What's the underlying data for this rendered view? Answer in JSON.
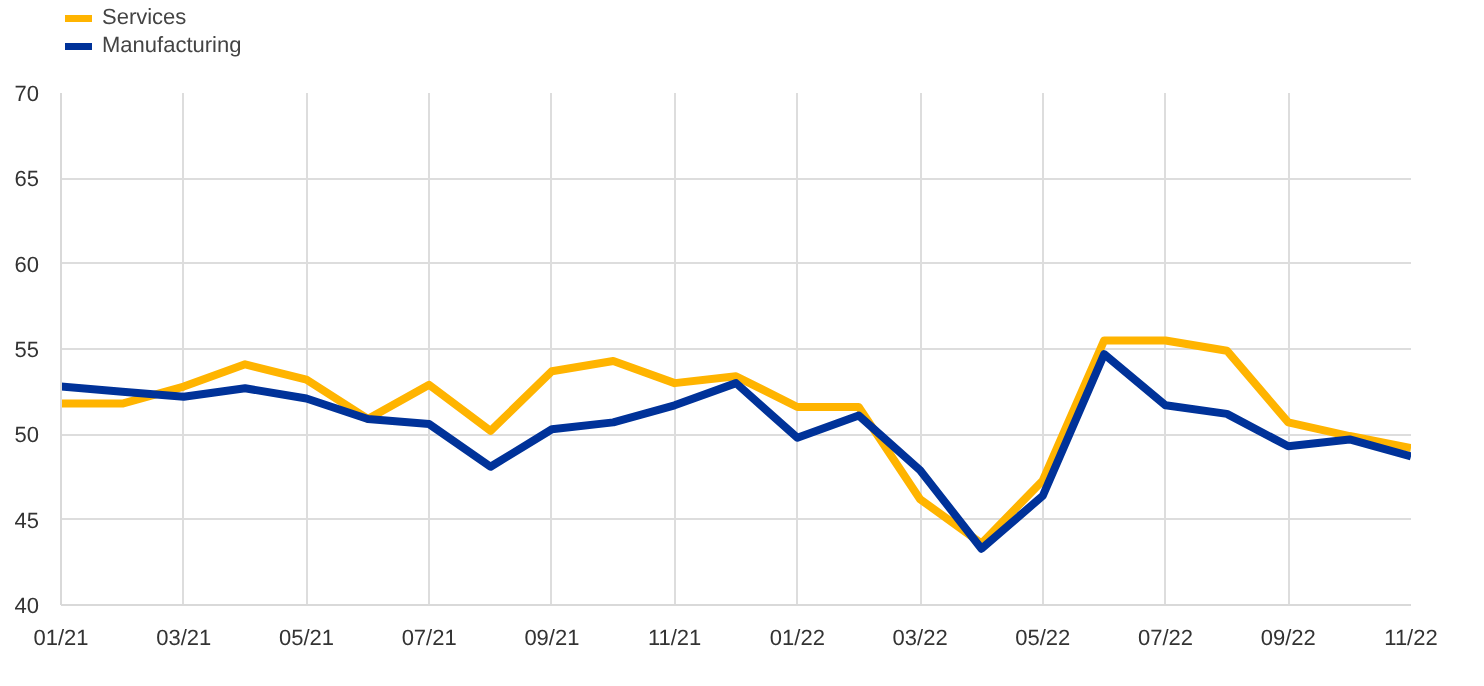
{
  "chart_data": {
    "type": "line",
    "categories": [
      "01/21",
      null,
      "03/21",
      null,
      "05/21",
      null,
      "07/21",
      null,
      "09/21",
      null,
      "11/21",
      null,
      "01/22",
      null,
      "03/22",
      null,
      "05/22",
      null,
      "07/22",
      null,
      "09/22",
      null,
      "11/22"
    ],
    "series": [
      {
        "name": "Services",
        "color": "#ffb400",
        "values": [
          51.8,
          51.8,
          52.8,
          54.1,
          53.2,
          50.9,
          52.9,
          50.2,
          53.7,
          54.3,
          53.0,
          53.4,
          51.6,
          51.6,
          46.2,
          43.6,
          47.3,
          55.5,
          55.5,
          54.9,
          50.7,
          49.9,
          49.2
        ]
      },
      {
        "name": "Manufacturing",
        "color": "#003299",
        "values": [
          52.8,
          52.5,
          52.2,
          52.7,
          52.1,
          50.9,
          50.6,
          48.1,
          50.3,
          50.7,
          51.7,
          53.0,
          49.8,
          51.1,
          47.9,
          43.3,
          46.4,
          54.7,
          51.7,
          51.2,
          49.3,
          49.7,
          48.7
        ]
      }
    ],
    "ylim": [
      40,
      70
    ],
    "yticks": [
      40,
      45,
      50,
      55,
      60,
      65,
      70
    ],
    "grid": true,
    "legend": "top left",
    "marker": "none",
    "line_style": "solid"
  }
}
